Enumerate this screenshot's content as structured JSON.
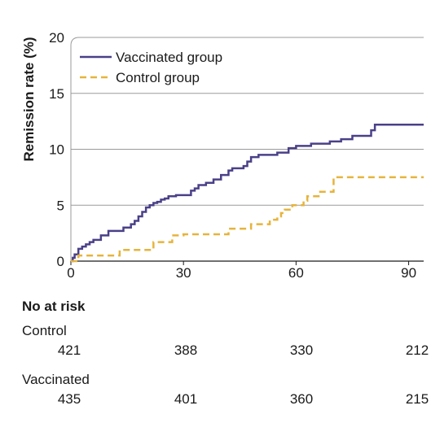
{
  "chart_data": {
    "type": "line",
    "step": true,
    "ylabel": "Remission rate (%)",
    "xlabel": "",
    "xlim": [
      0,
      94
    ],
    "ylim": [
      0,
      20
    ],
    "xticks": [
      0,
      30,
      60,
      90
    ],
    "yticks": [
      0,
      5,
      10,
      15,
      20
    ],
    "grid": "horizontal",
    "legend": "top-left",
    "series": [
      {
        "name": "Vaccinated group",
        "color": "#4a4088",
        "style": "solid",
        "x": [
          0,
          0.5,
          1,
          2,
          3,
          4,
          5,
          6,
          8,
          10,
          14,
          16,
          17,
          18,
          19,
          20,
          21,
          22,
          23,
          24,
          25,
          26,
          28,
          32,
          33,
          34,
          36,
          38,
          40,
          42,
          43,
          46,
          47,
          48,
          50,
          55,
          58,
          60,
          64,
          69,
          72,
          75,
          80,
          81,
          94
        ],
        "y": [
          0,
          0.3,
          0.6,
          1.1,
          1.3,
          1.5,
          1.7,
          1.9,
          2.3,
          2.7,
          3.0,
          3.3,
          3.6,
          4.0,
          4.4,
          4.8,
          5.0,
          5.2,
          5.3,
          5.5,
          5.6,
          5.8,
          5.9,
          6.3,
          6.5,
          6.8,
          7.0,
          7.3,
          7.7,
          8.1,
          8.3,
          8.5,
          8.9,
          9.3,
          9.5,
          9.7,
          10.1,
          10.3,
          10.5,
          10.7,
          10.9,
          11.2,
          11.7,
          12.2,
          12.2
        ]
      },
      {
        "name": "Control group",
        "color": "#e6b43c",
        "style": "dashed",
        "x": [
          0,
          2,
          13,
          22,
          27,
          30,
          42,
          48,
          53,
          55,
          56,
          57,
          59,
          62,
          63,
          66,
          70,
          94
        ],
        "y": [
          0,
          0.5,
          1.0,
          1.7,
          2.3,
          2.4,
          2.9,
          3.3,
          3.7,
          4.0,
          4.3,
          4.6,
          5.0,
          5.4,
          5.8,
          6.2,
          7.5,
          7.5
        ]
      }
    ],
    "risk_table": {
      "title": "No at risk",
      "groups": [
        {
          "name": "Control",
          "values": [
            "421",
            "388",
            "330",
            "212"
          ]
        },
        {
          "name": "Vaccinated",
          "values": [
            "435",
            "401",
            "360",
            "215"
          ]
        }
      ]
    }
  }
}
